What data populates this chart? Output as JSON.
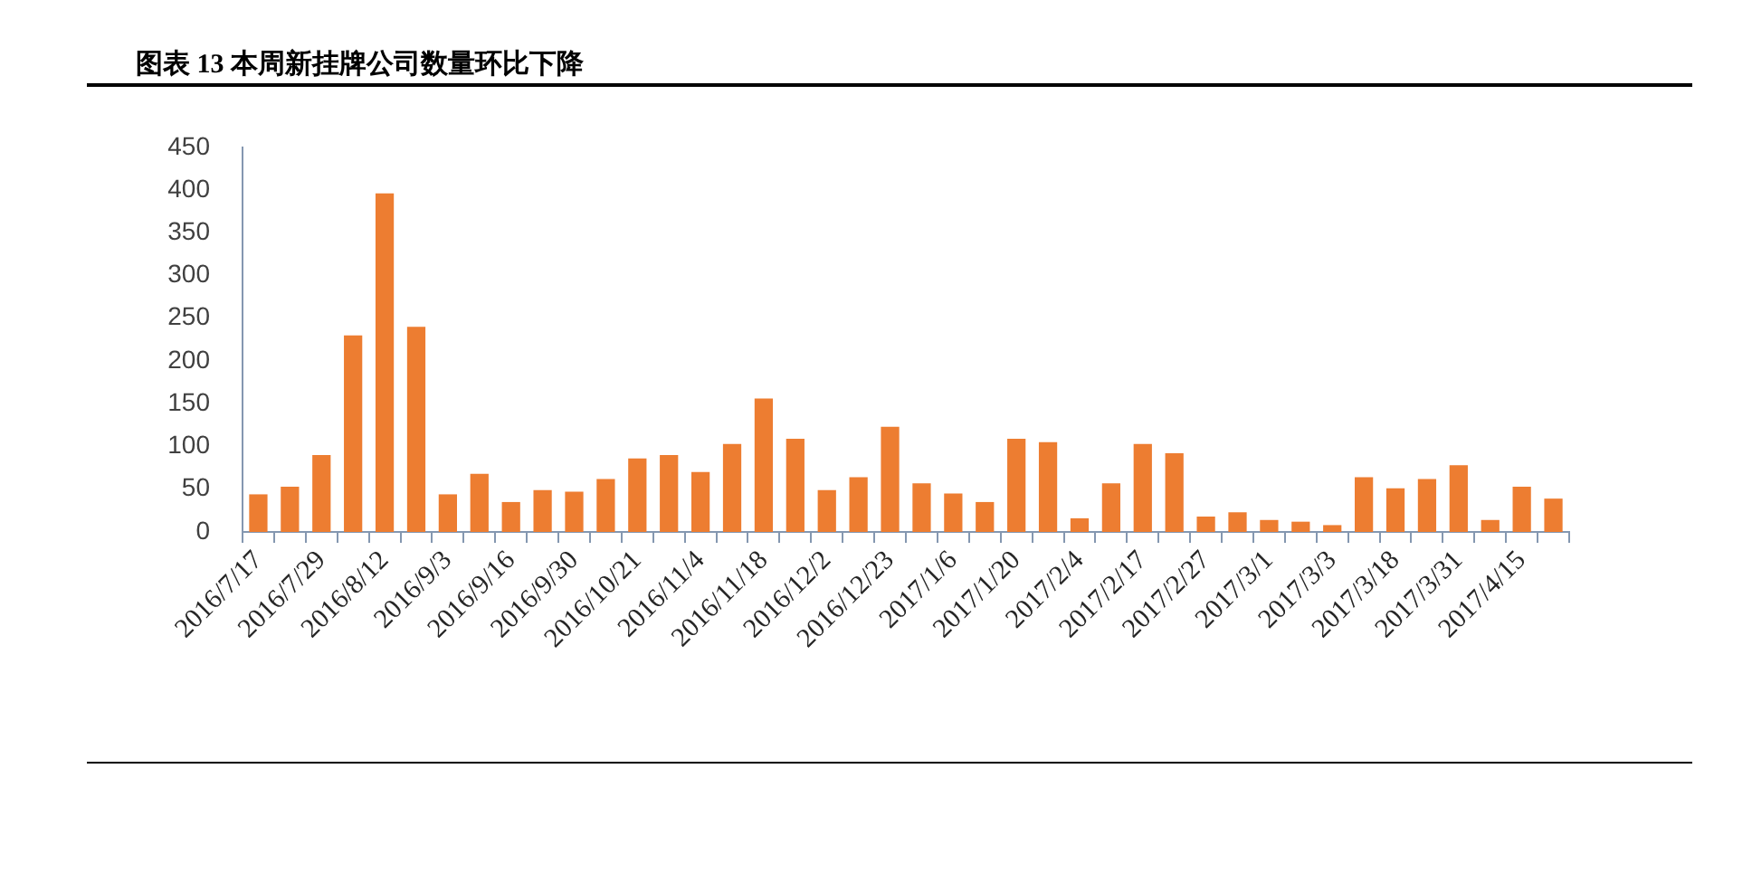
{
  "chart_data": {
    "type": "bar",
    "title": "图表 13 本周新挂牌公司数量环比下降",
    "categories": [
      "2016/7/17",
      null,
      "2016/7/29",
      null,
      "2016/8/12",
      null,
      "2016/9/3",
      null,
      "2016/9/16",
      null,
      "2016/9/30",
      null,
      "2016/10/21",
      null,
      "2016/11/4",
      null,
      "2016/11/18",
      null,
      "2016/12/2",
      null,
      "2016/12/23",
      null,
      "2017/1/6",
      null,
      "2017/1/20",
      null,
      "2017/2/4",
      null,
      "2017/2/17",
      null,
      "2017/2/27",
      null,
      "2017/3/1",
      null,
      "2017/3/3",
      null,
      "2017/3/18",
      null,
      "2017/3/31",
      null,
      "2017/4/15",
      null
    ],
    "values": [
      44,
      53,
      90,
      230,
      396,
      240,
      44,
      68,
      35,
      49,
      47,
      62,
      86,
      90,
      70,
      103,
      156,
      109,
      49,
      64,
      123,
      57,
      45,
      35,
      109,
      105,
      16,
      57,
      103,
      92,
      18,
      23,
      14,
      12,
      8,
      64,
      51,
      62,
      78,
      14,
      53,
      39
    ],
    "color": "#ed7d31",
    "ylim": [
      0,
      450
    ],
    "yticks": [
      0,
      50,
      100,
      150,
      200,
      250,
      300,
      350,
      400,
      450
    ],
    "grid": false,
    "legend": false
  }
}
